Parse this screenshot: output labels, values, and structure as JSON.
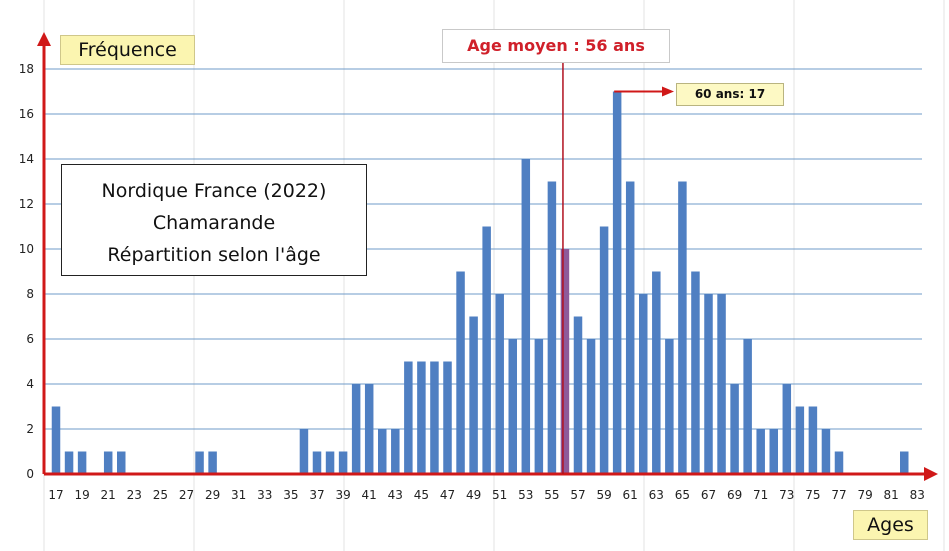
{
  "chart_data": {
    "type": "bar",
    "title": [
      "Nordique France (2022)",
      "Chamarande",
      "Répartition selon l'âge"
    ],
    "xlabel": "Ages",
    "ylabel": "Fréquence",
    "ylim": [
      0,
      18
    ],
    "yticks": [
      "0",
      "2",
      "4",
      "6",
      "8",
      "10",
      "12",
      "14",
      "16",
      "18"
    ],
    "categories": [
      17,
      18,
      19,
      20,
      21,
      22,
      23,
      24,
      25,
      26,
      27,
      28,
      29,
      30,
      31,
      32,
      33,
      34,
      35,
      36,
      37,
      38,
      39,
      40,
      41,
      42,
      43,
      44,
      45,
      46,
      47,
      48,
      49,
      50,
      51,
      52,
      53,
      54,
      55,
      56,
      57,
      58,
      59,
      60,
      61,
      62,
      63,
      64,
      65,
      66,
      67,
      68,
      69,
      70,
      71,
      72,
      73,
      74,
      75,
      76,
      77,
      78,
      79,
      80,
      81,
      82,
      83
    ],
    "xtick_labels": [
      "17",
      "19",
      "21",
      "23",
      "25",
      "27",
      "29",
      "31",
      "33",
      "35",
      "37",
      "39",
      "41",
      "43",
      "45",
      "47",
      "49",
      "51",
      "53",
      "55",
      "57",
      "59",
      "61",
      "63",
      "65",
      "67",
      "69",
      "71",
      "73",
      "75",
      "77",
      "79",
      "81",
      "83"
    ],
    "values": [
      3,
      1,
      1,
      0,
      1,
      1,
      0,
      0,
      0,
      0,
      0,
      1,
      1,
      0,
      0,
      0,
      0,
      0,
      0,
      2,
      1,
      1,
      1,
      4,
      4,
      2,
      2,
      5,
      5,
      5,
      5,
      9,
      7,
      11,
      8,
      6,
      14,
      6,
      13,
      10,
      7,
      6,
      11,
      17,
      13,
      8,
      9,
      6,
      13,
      9,
      8,
      8,
      4,
      6,
      2,
      2,
      4,
      3,
      3,
      2,
      1,
      0,
      0,
      0,
      0,
      1,
      0
    ],
    "highlight": {
      "age": 56,
      "color": "#8e5a9a"
    },
    "grid": true,
    "bar_color": "#4f7fc2",
    "mean_line": {
      "age": 56,
      "label": "Age moyen : 56 ans",
      "color": "#b01020"
    },
    "annotation": {
      "age": 60,
      "label": "60 ans: 17",
      "value": 17,
      "arrow_color": "#d01818"
    }
  }
}
